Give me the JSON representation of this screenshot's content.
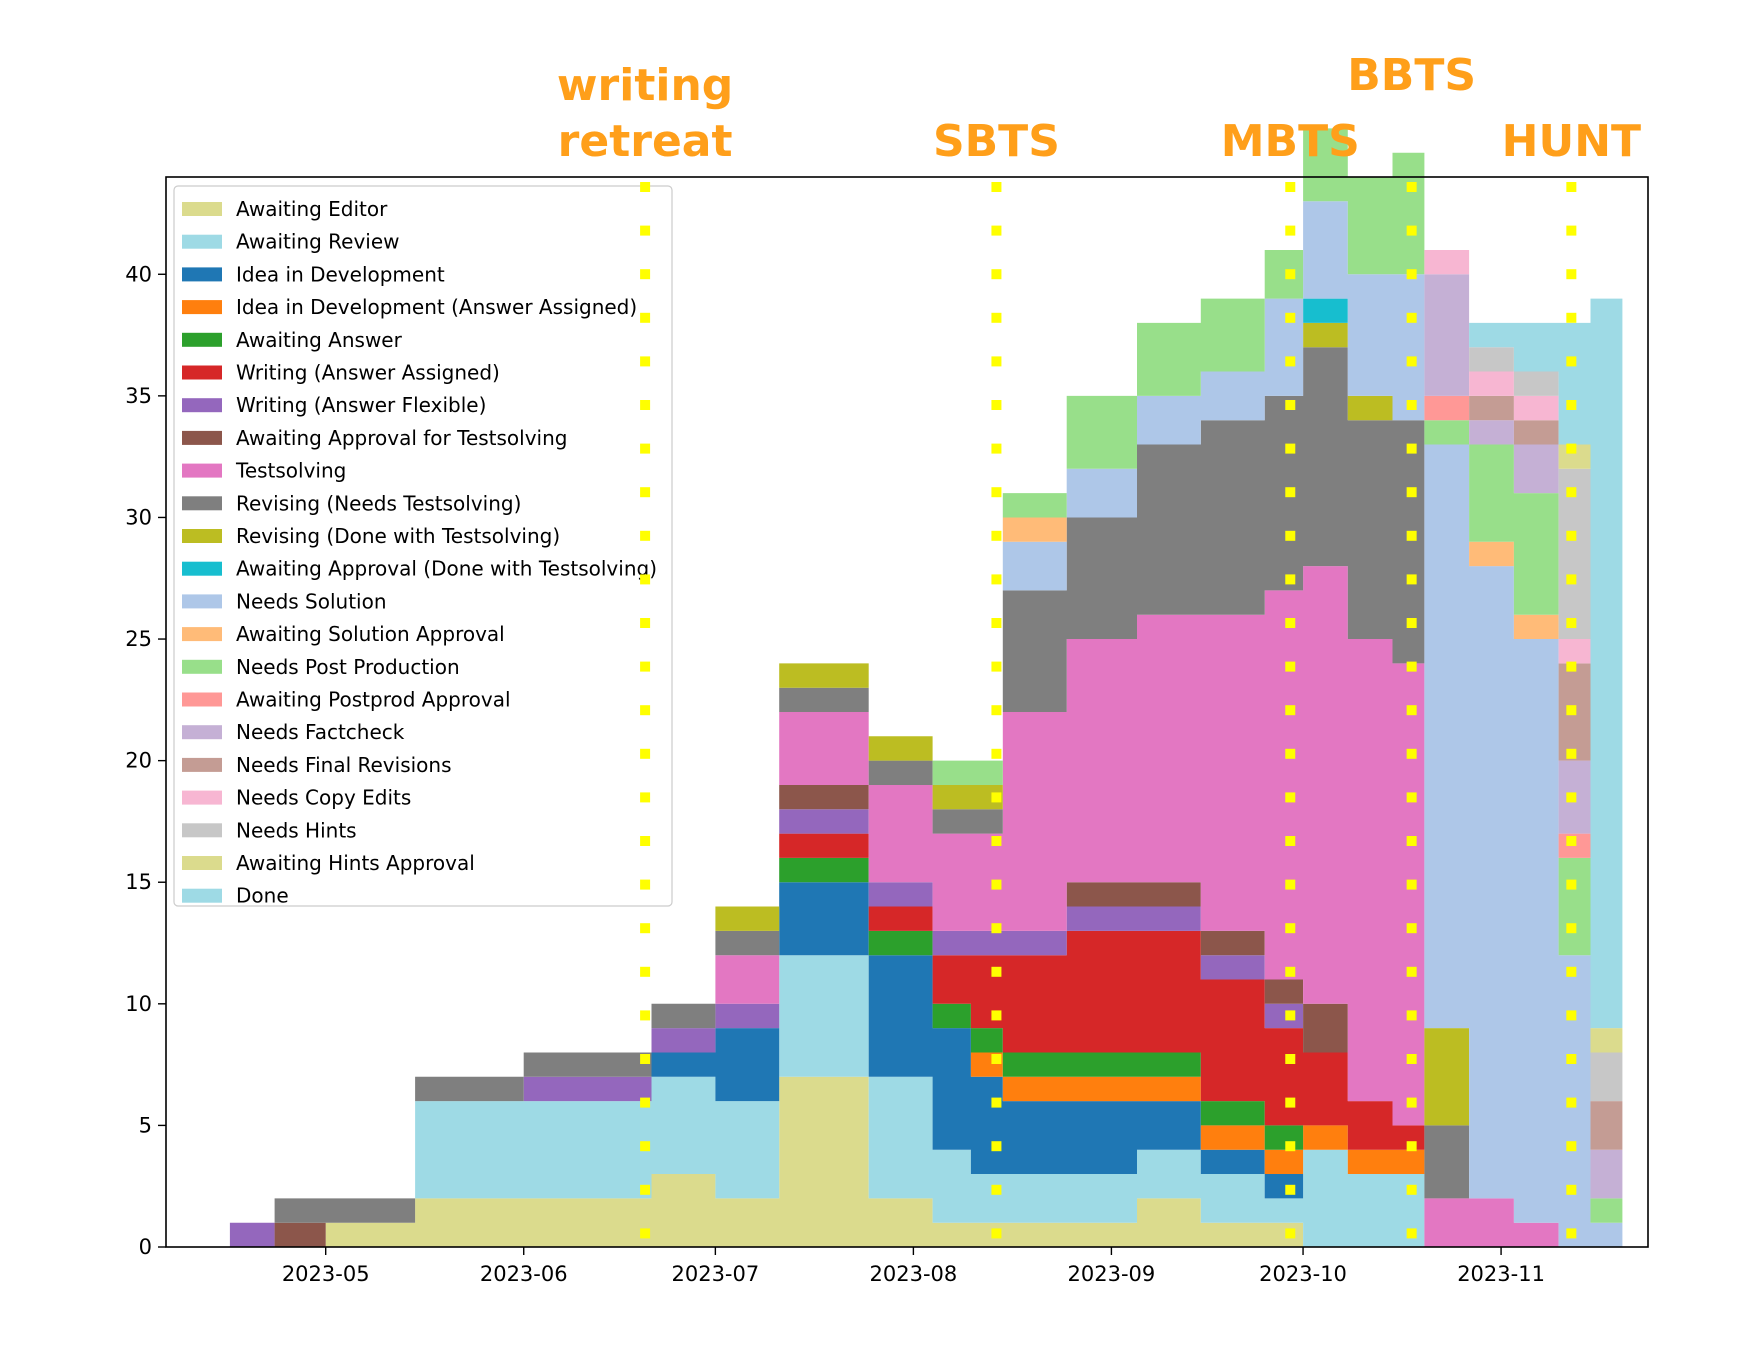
{
  "chart_data": {
    "type": "area",
    "stacked": true,
    "title": "",
    "xlabel": "",
    "ylabel": "",
    "x_type": "date",
    "xlim": [
      "2023-04-06",
      "2023-11-24"
    ],
    "ylim": [
      0,
      44
    ],
    "x_ticks": [
      "2023-05-01",
      "2023-06-01",
      "2023-07-01",
      "2023-08-01",
      "2023-09-01",
      "2023-10-01",
      "2023-11-01"
    ],
    "x_tick_labels": [
      "2023-05",
      "2023-06",
      "2023-07",
      "2023-08",
      "2023-09",
      "2023-10",
      "2023-11"
    ],
    "y_ticks": [
      0,
      5,
      10,
      15,
      20,
      25,
      30,
      35,
      40
    ],
    "grid": false,
    "legend_position": "upper-left",
    "x": [
      "2023-04-16",
      "2023-04-23",
      "2023-05-01",
      "2023-05-15",
      "2023-06-01",
      "2023-06-15",
      "2023-06-21",
      "2023-07-01",
      "2023-07-11",
      "2023-07-25",
      "2023-08-04",
      "2023-08-10",
      "2023-08-15",
      "2023-08-25",
      "2023-09-05",
      "2023-09-15",
      "2023-09-25",
      "2023-10-01",
      "2023-10-08",
      "2023-10-15",
      "2023-10-20",
      "2023-10-27",
      "2023-11-03",
      "2023-11-10",
      "2023-11-15",
      "2023-11-20"
    ],
    "series": [
      {
        "name": "Awaiting Editor",
        "color": "#dbdb8d",
        "values": [
          0,
          0,
          1,
          2,
          2,
          2,
          3,
          2,
          7,
          2,
          1,
          1,
          1,
          1,
          2,
          1,
          1,
          0,
          0,
          0,
          0,
          0,
          0,
          0,
          0,
          0
        ]
      },
      {
        "name": "Awaiting Review",
        "color": "#9edae5",
        "values": [
          0,
          0,
          0,
          4,
          4,
          4,
          4,
          4,
          5,
          5,
          3,
          2,
          2,
          2,
          2,
          2,
          1,
          4,
          3,
          3,
          0,
          0,
          0,
          0,
          0,
          0
        ]
      },
      {
        "name": "Idea in Development",
        "color": "#1f77b4",
        "values": [
          0,
          0,
          0,
          0,
          0,
          0,
          1,
          3,
          3,
          5,
          5,
          4,
          3,
          3,
          2,
          1,
          1,
          0,
          0,
          0,
          0,
          0,
          0,
          0,
          0,
          0
        ]
      },
      {
        "name": "Idea in Development (Answer Assigned)",
        "color": "#ff7f0e",
        "values": [
          0,
          0,
          0,
          0,
          0,
          0,
          0,
          0,
          0,
          0,
          0,
          1,
          1,
          1,
          1,
          1,
          1,
          1,
          1,
          1,
          0,
          0,
          0,
          0,
          0,
          0
        ]
      },
      {
        "name": "Awaiting Answer",
        "color": "#2ca02c",
        "values": [
          0,
          0,
          0,
          0,
          0,
          0,
          0,
          0,
          1,
          1,
          1,
          1,
          1,
          1,
          1,
          1,
          1,
          0,
          0,
          0,
          0,
          0,
          0,
          0,
          0,
          0
        ]
      },
      {
        "name": "Writing (Answer Assigned)",
        "color": "#d62728",
        "values": [
          0,
          0,
          0,
          0,
          0,
          0,
          0,
          0,
          1,
          1,
          2,
          3,
          4,
          5,
          5,
          5,
          4,
          3,
          2,
          1,
          0,
          0,
          0,
          0,
          0,
          0
        ]
      },
      {
        "name": "Writing (Answer Flexible)",
        "color": "#9467bd",
        "values": [
          1,
          0,
          0,
          0,
          1,
          1,
          1,
          1,
          1,
          1,
          1,
          1,
          1,
          1,
          1,
          1,
          1,
          0,
          0,
          0,
          0,
          0,
          0,
          0,
          0,
          0
        ]
      },
      {
        "name": "Awaiting Approval for Testsolving",
        "color": "#8c564b",
        "values": [
          0,
          1,
          0,
          0,
          0,
          0,
          0,
          0,
          1,
          0,
          0,
          0,
          0,
          1,
          1,
          1,
          1,
          2,
          0,
          0,
          0,
          0,
          0,
          0,
          0,
          0
        ]
      },
      {
        "name": "Testsolving",
        "color": "#e377c2",
        "values": [
          0,
          0,
          0,
          0,
          0,
          0,
          0,
          2,
          3,
          4,
          4,
          4,
          9,
          10,
          11,
          13,
          16,
          18,
          19,
          19,
          2,
          2,
          1,
          0,
          0,
          0
        ]
      },
      {
        "name": "Revising (Needs Testsolving)",
        "color": "#7f7f7f",
        "values": [
          0,
          1,
          1,
          1,
          1,
          1,
          1,
          1,
          1,
          1,
          1,
          1,
          5,
          5,
          7,
          8,
          8,
          9,
          9,
          10,
          3,
          0,
          0,
          0,
          0,
          0
        ]
      },
      {
        "name": "Revising (Done with Testsolving)",
        "color": "#bcbd22",
        "values": [
          0,
          0,
          0,
          0,
          0,
          0,
          0,
          1,
          1,
          1,
          1,
          1,
          0,
          0,
          0,
          0,
          0,
          1,
          1,
          0,
          4,
          0,
          0,
          0,
          0,
          0
        ]
      },
      {
        "name": "Awaiting Approval (Done with Testsolving)",
        "color": "#17becf",
        "values": [
          0,
          0,
          0,
          0,
          0,
          0,
          0,
          0,
          0,
          0,
          0,
          0,
          0,
          0,
          0,
          0,
          0,
          1,
          0,
          0,
          0,
          0,
          0,
          0,
          0,
          0
        ]
      },
      {
        "name": "Needs Solution",
        "color": "#aec7e8",
        "values": [
          0,
          0,
          0,
          0,
          0,
          0,
          0,
          0,
          0,
          0,
          0,
          0,
          2,
          2,
          2,
          2,
          4,
          4,
          5,
          6,
          24,
          26,
          24,
          12,
          1,
          0
        ]
      },
      {
        "name": "Awaiting Solution Approval",
        "color": "#ffbb78",
        "values": [
          0,
          0,
          0,
          0,
          0,
          0,
          0,
          0,
          0,
          0,
          0,
          0,
          1,
          0,
          0,
          0,
          0,
          0,
          0,
          0,
          0,
          1,
          1,
          0,
          0,
          0
        ]
      },
      {
        "name": "Needs Post Production",
        "color": "#98df8a",
        "values": [
          0,
          0,
          0,
          0,
          0,
          0,
          0,
          0,
          0,
          0,
          1,
          1,
          1,
          3,
          3,
          3,
          2,
          3,
          4,
          5,
          1,
          4,
          5,
          4,
          1,
          0
        ]
      },
      {
        "name": "Awaiting Postprod Approval",
        "color": "#ff9896",
        "values": [
          0,
          0,
          0,
          0,
          0,
          0,
          0,
          0,
          0,
          0,
          0,
          0,
          0,
          0,
          0,
          0,
          0,
          0,
          0,
          0,
          1,
          0,
          0,
          1,
          0,
          0
        ]
      },
      {
        "name": "Needs Factcheck",
        "color": "#c5b0d5",
        "values": [
          0,
          0,
          0,
          0,
          0,
          0,
          0,
          0,
          0,
          0,
          0,
          0,
          0,
          0,
          0,
          0,
          0,
          0,
          0,
          0,
          5,
          1,
          2,
          3,
          2,
          0
        ]
      },
      {
        "name": "Needs Final Revisions",
        "color": "#c49c94",
        "values": [
          0,
          0,
          0,
          0,
          0,
          0,
          0,
          0,
          0,
          0,
          0,
          0,
          0,
          0,
          0,
          0,
          0,
          0,
          0,
          0,
          0,
          1,
          1,
          4,
          2,
          0
        ]
      },
      {
        "name": "Needs Copy Edits",
        "color": "#f7b6d2",
        "values": [
          0,
          0,
          0,
          0,
          0,
          0,
          0,
          0,
          0,
          0,
          0,
          0,
          0,
          0,
          0,
          0,
          0,
          0,
          0,
          0,
          1,
          1,
          1,
          1,
          0,
          0
        ]
      },
      {
        "name": "Needs Hints",
        "color": "#c7c7c7",
        "values": [
          0,
          0,
          0,
          0,
          0,
          0,
          0,
          0,
          0,
          0,
          0,
          0,
          0,
          0,
          0,
          0,
          0,
          0,
          0,
          0,
          0,
          1,
          1,
          7,
          2,
          0
        ]
      },
      {
        "name": "Awaiting Hints Approval",
        "color": "#dbdb8d",
        "values": [
          0,
          0,
          0,
          0,
          0,
          0,
          0,
          0,
          0,
          0,
          0,
          0,
          0,
          0,
          0,
          0,
          0,
          0,
          0,
          0,
          0,
          0,
          0,
          1,
          1,
          0
        ]
      },
      {
        "name": "Done",
        "color": "#9edae5",
        "values": [
          0,
          0,
          0,
          0,
          0,
          0,
          0,
          0,
          0,
          0,
          0,
          0,
          0,
          0,
          0,
          0,
          0,
          0,
          0,
          0,
          0,
          1,
          2,
          5,
          30,
          39
        ]
      }
    ],
    "annotations": [
      {
        "date": "2023-06-20",
        "lines": [
          "writing",
          "retreat"
        ],
        "color": "#ff9f1a"
      },
      {
        "date": "2023-08-14",
        "lines": [
          "SBTS"
        ],
        "color": "#ff9f1a"
      },
      {
        "date": "2023-09-29",
        "lines": [
          "MBTS"
        ],
        "color": "#ff9f1a"
      },
      {
        "date": "2023-10-18",
        "lines": [
          "BBTS"
        ],
        "color": "#ff9f1a"
      },
      {
        "date": "2023-11-12",
        "lines": [
          "HUNT"
        ],
        "color": "#ff9f1a"
      }
    ],
    "marker_line_color": "#ffff00"
  }
}
